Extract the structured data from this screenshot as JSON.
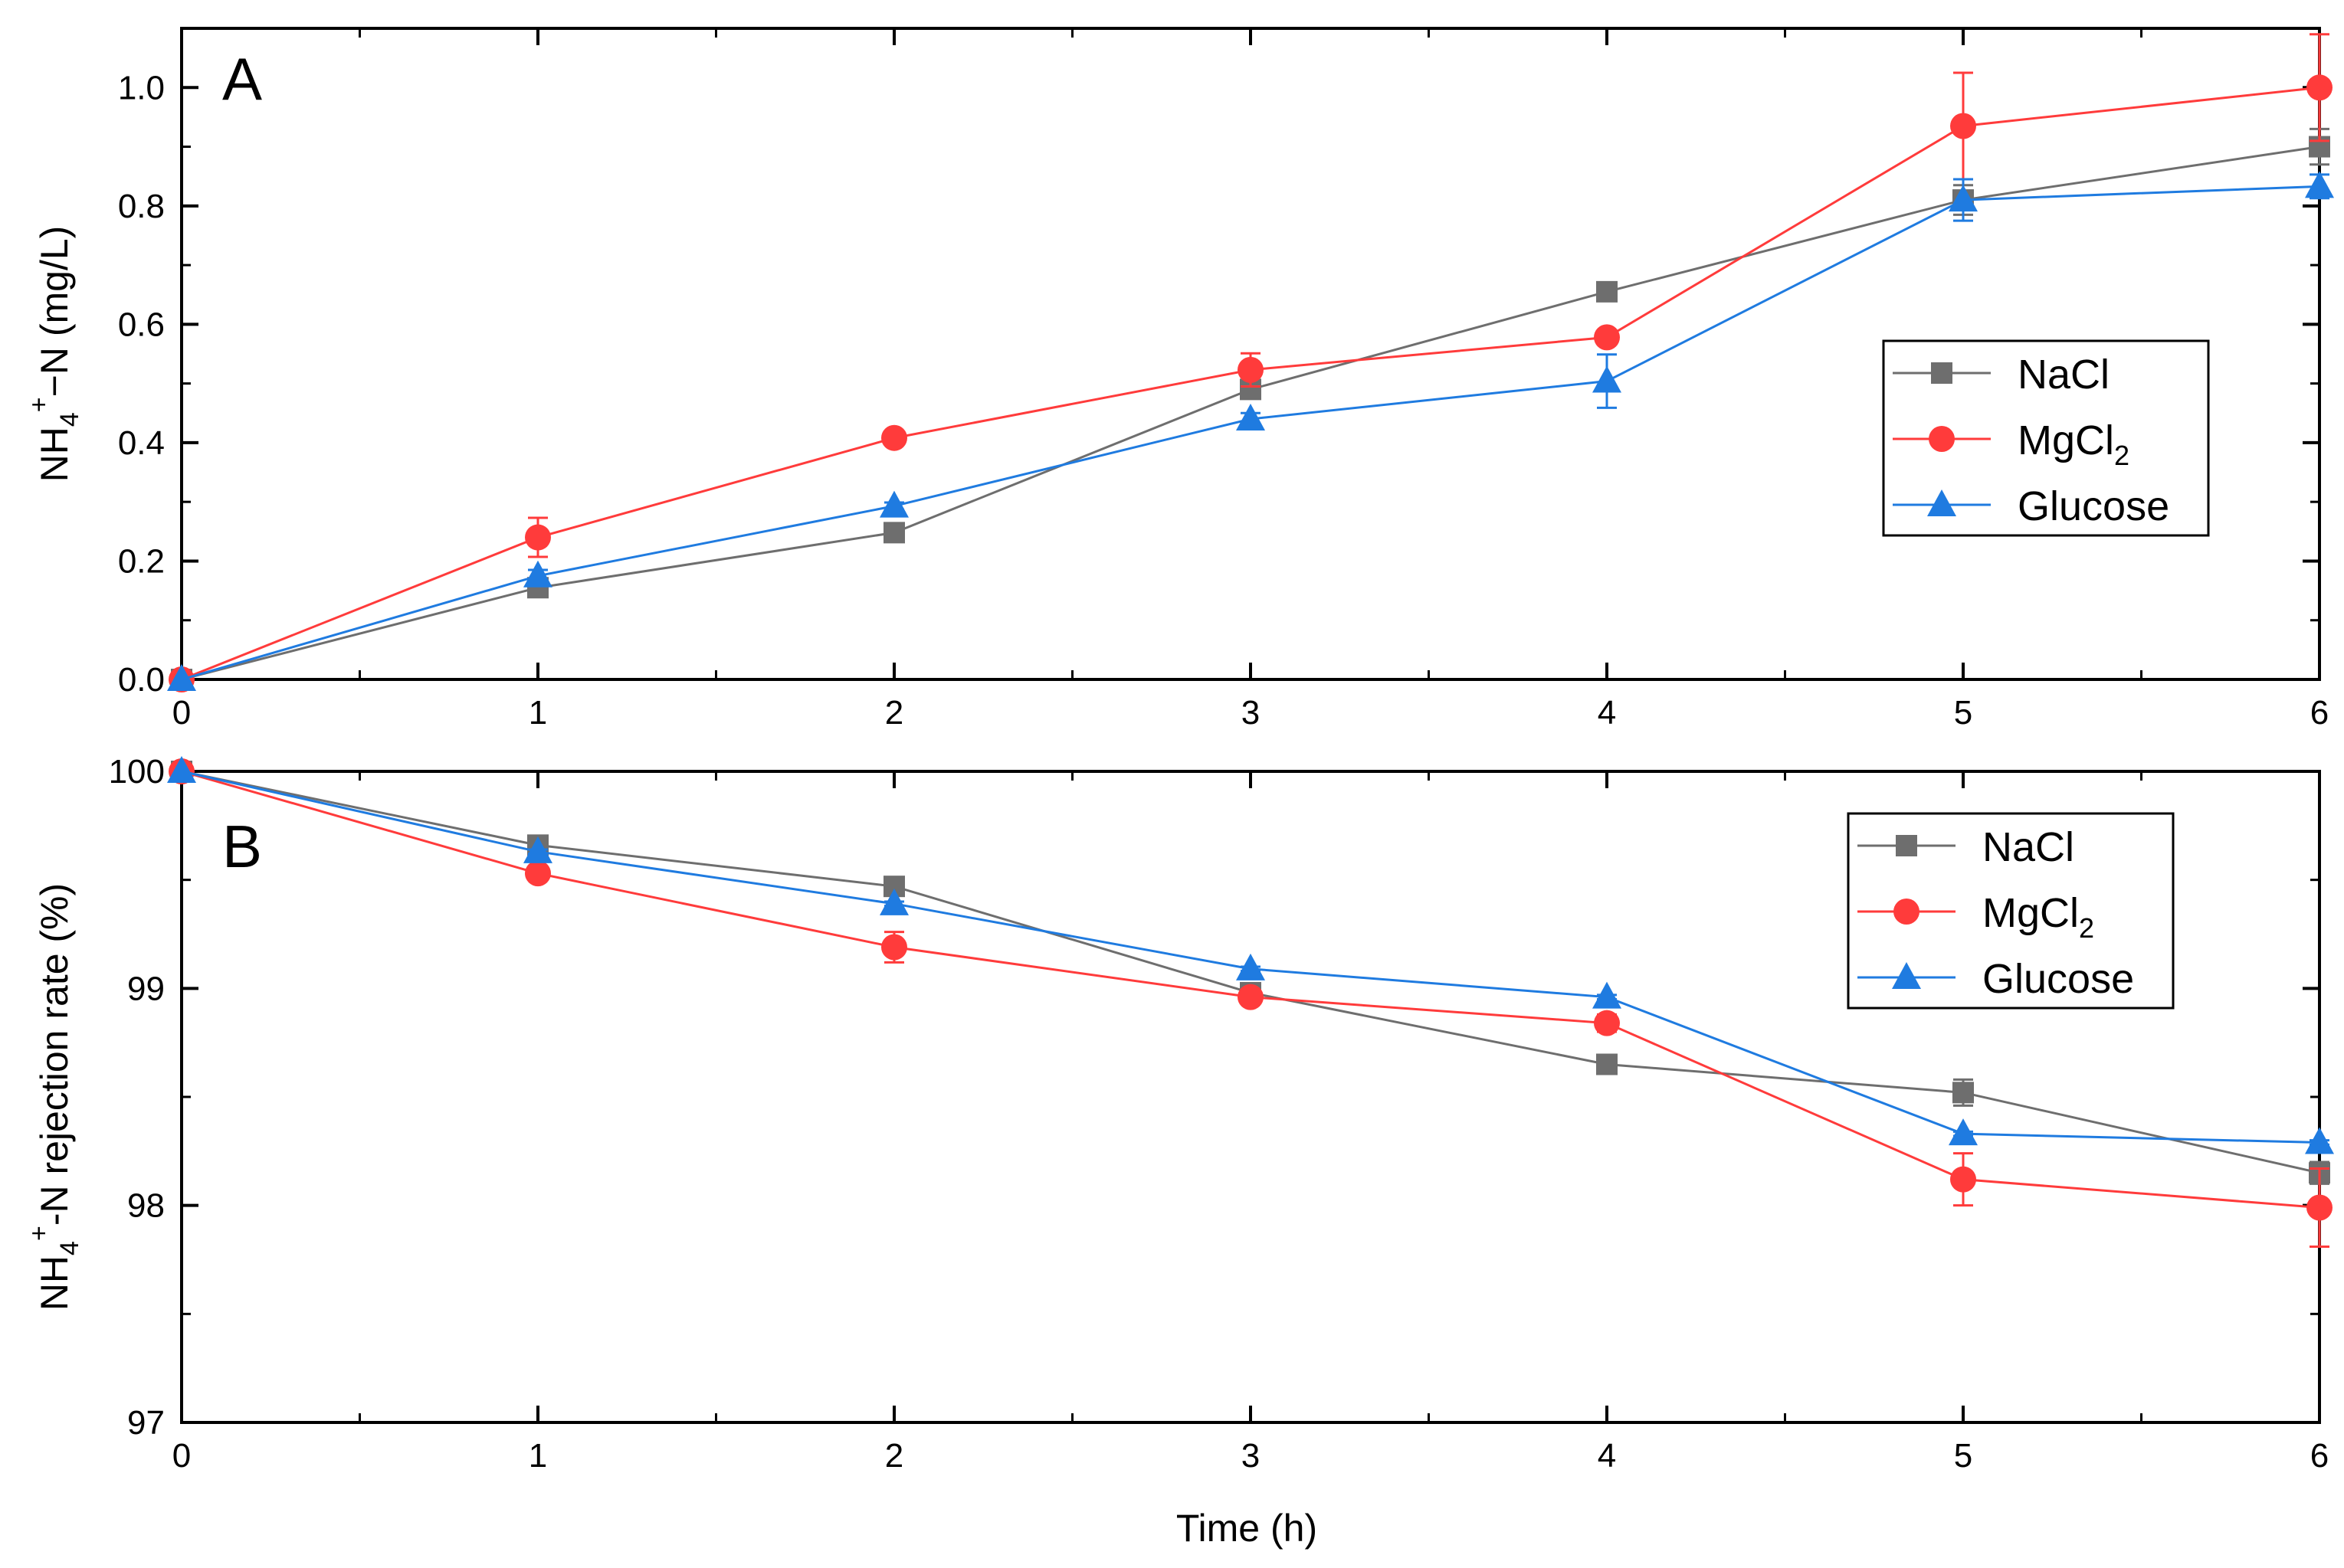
{
  "figure": {
    "xlabel": "Time (h)"
  },
  "chart_data": [
    {
      "type": "line",
      "panel_label": "A",
      "title": "",
      "xlabel": "Time (h)",
      "ylabel_parts": [
        "NH",
        "4",
        "+",
        "−N (mg/L)"
      ],
      "xlim": [
        0,
        6
      ],
      "ylim": [
        0,
        1.1
      ],
      "x": [
        0,
        1,
        2,
        3,
        4,
        5,
        6
      ],
      "x_ticks": [
        0,
        1,
        2,
        3,
        4,
        5,
        6
      ],
      "x_tick_labels": [
        "0",
        "1",
        "2",
        "3",
        "4",
        "5",
        "6"
      ],
      "y_ticks": [
        0,
        0.2,
        0.4,
        0.6,
        0.8,
        1.0
      ],
      "y_tick_labels": [
        "0.0",
        "0.2",
        "0.4",
        "0.6",
        "0.8",
        "1.0"
      ],
      "grid": false,
      "legend_position": "center-right",
      "series": [
        {
          "name": "NaCl",
          "legend_parts": [
            "NaCl"
          ],
          "marker": "square",
          "color": "#6e6e6e",
          "values": [
            0,
            0.155,
            0.248,
            0.49,
            0.655,
            0.81,
            0.9
          ],
          "errors": [
            0,
            0.006,
            0.005,
            0.01,
            0.01,
            0.025,
            0.03
          ]
        },
        {
          "name": "MgCl2",
          "legend_parts": [
            "MgCl",
            "2"
          ],
          "marker": "circle",
          "color": "#ff3b3b",
          "values": [
            0,
            0.24,
            0.408,
            0.523,
            0.578,
            0.935,
            1.0
          ],
          "errors": [
            0,
            0.033,
            0.008,
            0.028,
            0.012,
            0.09,
            0.09
          ]
        },
        {
          "name": "Glucose",
          "legend_parts": [
            "Glucose"
          ],
          "marker": "triangle",
          "color": "#1f7be0",
          "values": [
            0,
            0.175,
            0.293,
            0.44,
            0.504,
            0.81,
            0.833
          ],
          "errors": [
            0,
            0.01,
            0.006,
            0.01,
            0.045,
            0.035,
            0.02
          ]
        }
      ]
    },
    {
      "type": "line",
      "panel_label": "B",
      "title": "",
      "xlabel": "Time (h)",
      "ylabel_parts": [
        "NH",
        "4",
        "+",
        "-N rejection rate (%)"
      ],
      "xlim": [
        0,
        6
      ],
      "ylim": [
        97,
        100
      ],
      "x": [
        0,
        1,
        2,
        3,
        4,
        5,
        6
      ],
      "x_ticks": [
        0,
        1,
        2,
        3,
        4,
        5,
        6
      ],
      "x_tick_labels": [
        "0",
        "1",
        "2",
        "3",
        "4",
        "5",
        "6"
      ],
      "y_ticks": [
        97,
        98,
        99,
        100
      ],
      "y_tick_labels": [
        "97",
        "98",
        "99",
        "100"
      ],
      "grid": false,
      "legend_position": "top-right",
      "series": [
        {
          "name": "NaCl",
          "legend_parts": [
            "NaCl"
          ],
          "marker": "square",
          "color": "#6e6e6e",
          "values": [
            100,
            99.66,
            99.47,
            98.98,
            98.65,
            98.52,
            98.15
          ],
          "errors": [
            0,
            0.01,
            0.01,
            0.01,
            0.01,
            0.06,
            0.05
          ]
        },
        {
          "name": "MgCl2",
          "legend_parts": [
            "MgCl",
            "2"
          ],
          "marker": "circle",
          "color": "#ff3b3b",
          "values": [
            100,
            99.53,
            99.19,
            98.96,
            98.84,
            98.12,
            97.99
          ],
          "errors": [
            0,
            0.01,
            0.07,
            0.02,
            0.04,
            0.12,
            0.18
          ]
        },
        {
          "name": "Glucose",
          "legend_parts": [
            "Glucose"
          ],
          "marker": "triangle",
          "color": "#1f7be0",
          "values": [
            100,
            99.63,
            99.39,
            99.09,
            98.96,
            98.33,
            98.29
          ],
          "errors": [
            0,
            0.01,
            0.01,
            0.01,
            0.01,
            0.01,
            0.01
          ]
        }
      ]
    }
  ]
}
